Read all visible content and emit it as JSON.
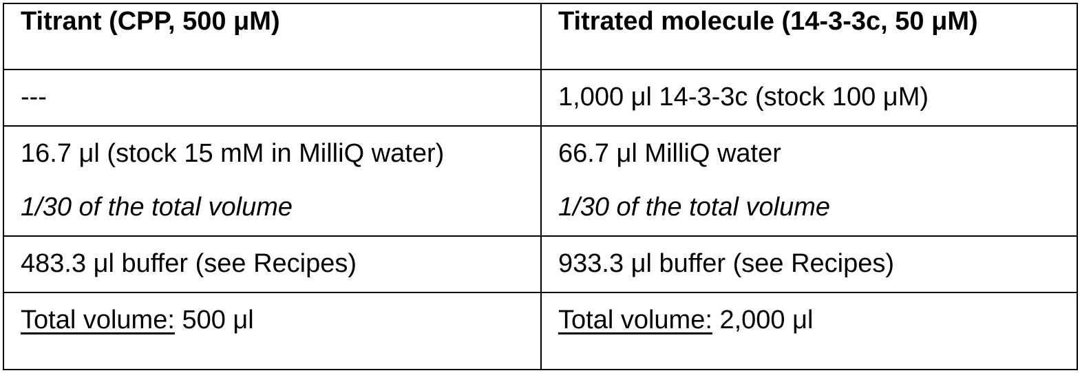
{
  "table": {
    "headers": {
      "titrant": "Titrant (CPP, 500 μM)",
      "titrated": "Titrated molecule (14-3-3c, 50 μM)"
    },
    "rows": [
      {
        "titrant": {
          "line1": "---"
        },
        "titrated": {
          "line1": "1,000 μl 14-3-3c (stock 100 μM)"
        }
      },
      {
        "titrant": {
          "line1": "16.7 μl (stock 15 mM in MilliQ water)",
          "note": "1/30 of the total volume"
        },
        "titrated": {
          "line1": "66.7 μl MilliQ water",
          "note": "1/30 of the total volume"
        }
      },
      {
        "titrant": {
          "line1": "483.3 μl buffer (see Recipes)"
        },
        "titrated": {
          "line1": "933.3 μl buffer (see Recipes)"
        }
      },
      {
        "titrant": {
          "label": "Total volume:",
          "value": " 500 μl"
        },
        "titrated": {
          "label": "Total volume:",
          "value": " 2,000 μl"
        }
      }
    ]
  }
}
